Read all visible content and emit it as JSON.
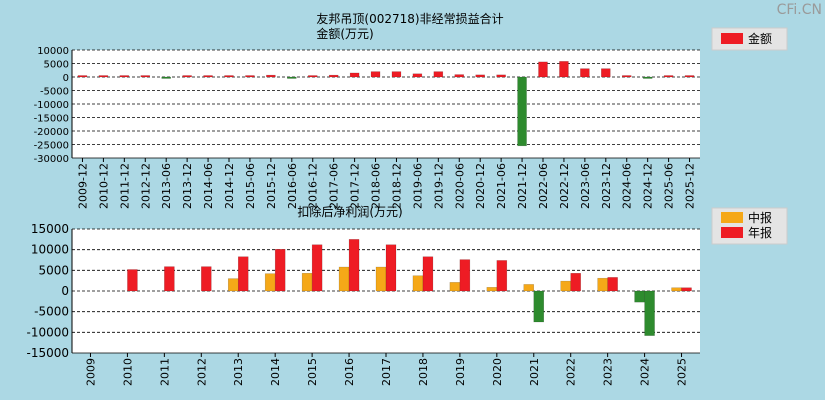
{
  "watermark": "CFi.CN",
  "colors": {
    "background": "#acd8e4",
    "plot_bg": "#ffffff",
    "annual": "#ee1c24",
    "interim": "#f5a818",
    "negative": "#2e8b2e",
    "grid": "#000000"
  },
  "chart_data": [
    {
      "type": "bar",
      "title": "友邦吊顶(002718)非经常损益合计",
      "subtitle": "金额(万元)",
      "legend": [
        "金额"
      ],
      "legend_position": "top-right",
      "grid": true,
      "ylim": [
        -30000,
        10000
      ],
      "yticks": [
        "10000",
        "5000",
        "0",
        "-5000",
        "-10000",
        "-15000",
        "-20000",
        "-25000",
        "-30000"
      ],
      "ytick_values": [
        10000,
        5000,
        0,
        -5000,
        -10000,
        -15000,
        -20000,
        -25000,
        -30000
      ],
      "categories": [
        "2009-12",
        "2010-12",
        "2011-12",
        "2012-12",
        "2013-06",
        "2013-12",
        "2014-06",
        "2014-12",
        "2015-06",
        "2015-12",
        "2016-06",
        "2016-12",
        "2017-06",
        "2017-12",
        "2018-06",
        "2018-12",
        "2019-06",
        "2019-12",
        "2020-06",
        "2020-12",
        "2021-06",
        "2021-12",
        "2022-06",
        "2022-12",
        "2023-06",
        "2023-12",
        "2024-06",
        "2024-12",
        "2025-06",
        "2025-12"
      ],
      "series": [
        {
          "name": "金额",
          "values": [
            0,
            300,
            300,
            200,
            -100,
            200,
            200,
            300,
            500,
            700,
            -100,
            300,
            700,
            1500,
            2000,
            2000,
            1200,
            2000,
            900,
            800,
            800,
            -25500,
            5600,
            5800,
            3100,
            3100,
            300,
            -200,
            0,
            400
          ]
        }
      ]
    },
    {
      "type": "bar",
      "title": "扣除后净利润(万元)",
      "legend": [
        "中报",
        "年报"
      ],
      "legend_position": "top-right",
      "grid": true,
      "ylim": [
        -15000,
        15000
      ],
      "yticks": [
        "15000",
        "10000",
        "5000",
        "0",
        "-5000",
        "-10000",
        "-15000"
      ],
      "ytick_values": [
        15000,
        10000,
        5000,
        0,
        -5000,
        -10000,
        -15000
      ],
      "categories": [
        "2009",
        "2010",
        "2011",
        "2012",
        "2013",
        "2014",
        "2015",
        "2016",
        "2017",
        "2018",
        "2019",
        "2020",
        "2021",
        "2022",
        "2023",
        "2024",
        "2025"
      ],
      "series": [
        {
          "name": "中报",
          "values": [
            null,
            null,
            null,
            null,
            3000,
            4200,
            4300,
            5800,
            5800,
            3700,
            2100,
            900,
            1600,
            2400,
            3100,
            -2700,
            800
          ]
        },
        {
          "name": "年报",
          "values": [
            null,
            5200,
            5900,
            5900,
            8300,
            10100,
            11200,
            12500,
            11200,
            8300,
            7600,
            7400,
            -7500,
            4300,
            3300,
            -10800,
            800
          ]
        }
      ]
    }
  ]
}
